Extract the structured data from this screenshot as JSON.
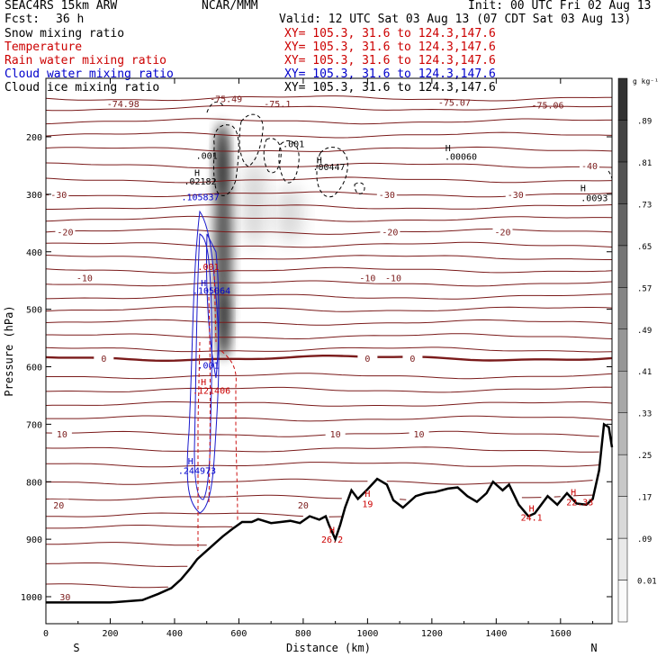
{
  "header": {
    "model": "SEAC4RS 15km ARW",
    "org": "NCAR/MMM",
    "init": "Init: 00 UTC Fri 02 Aug 13",
    "fcst_label": "Fcst:",
    "fcst_value": "36 h",
    "valid": "Valid: 12 UTC Sat 03 Aug 13 (07 CDT Sat 03 Aug 13)"
  },
  "fields": [
    {
      "name": "Snow mixing ratio",
      "xy": "XY= 105.3, 31.6 to 124.3,147.6",
      "color": "#000000"
    },
    {
      "name": "Temperature",
      "xy": "XY= 105.3, 31.6 to 124.3,147.6",
      "color": "#cc0000"
    },
    {
      "name": "Rain water mixing ratio",
      "xy": "XY= 105.3, 31.6 to 124.3,147.6",
      "color": "#cc0000"
    },
    {
      "name": "Cloud water mixing ratio",
      "xy": "XY= 105.3, 31.6 to 124.3,147.6",
      "color": "#0000cc"
    },
    {
      "name": "Cloud ice mixing ratio",
      "xy": "XY= 105.3, 31.6 to 124.3,147.6",
      "color": "#000000"
    }
  ],
  "chart_data": {
    "type": "cross-section",
    "xlabel": "Distance (km)",
    "ylabel": "Pressure (hPa)",
    "xlim": [
      0,
      1760
    ],
    "ylim": [
      1050,
      120
    ],
    "x_ticks": [
      0,
      200,
      400,
      600,
      800,
      1000,
      1200,
      1400,
      1600
    ],
    "y_ticks": [
      200,
      300,
      400,
      500,
      600,
      700,
      800,
      900,
      1000
    ],
    "left_end_label": "S",
    "right_end_label": "N",
    "colorbar": {
      "unit": "g kg⁻¹",
      "levels": [
        "0.01",
        ".09",
        ".17",
        ".25",
        ".33",
        ".41",
        ".49",
        ".57",
        ".65",
        ".73",
        ".81",
        ".89"
      ]
    },
    "temperature_isotherms": [
      {
        "temp": -30,
        "p": 300,
        "labels": [
          [
            40,
            "-30"
          ],
          [
            1060,
            "-30"
          ],
          [
            1460,
            "-30"
          ]
        ]
      },
      {
        "temp": -20,
        "p": 365,
        "labels": [
          [
            60,
            "-20"
          ],
          [
            1070,
            "-20"
          ],
          [
            1420,
            "-20"
          ]
        ]
      },
      {
        "temp": -10,
        "p": 445,
        "labels": [
          [
            120,
            "-10"
          ],
          [
            1000,
            "-10"
          ],
          [
            1080,
            "-10"
          ]
        ]
      },
      {
        "temp": 0,
        "p": 585,
        "labels": [
          [
            180,
            "0"
          ],
          [
            1000,
            "0"
          ],
          [
            1140,
            "0"
          ]
        ]
      },
      {
        "temp": 10,
        "p": 717,
        "labels": [
          [
            50,
            "10"
          ],
          [
            900,
            "10"
          ],
          [
            1160,
            "10"
          ]
        ]
      },
      {
        "temp": 20,
        "p": 840,
        "labels": [
          [
            40,
            "20"
          ],
          [
            800,
            "20"
          ]
        ]
      },
      {
        "temp": 30,
        "p": 1000,
        "labels": [
          [
            60,
            "30"
          ]
        ]
      },
      {
        "temp": -40,
        "p": 250,
        "labels": [
          [
            1690,
            "-40"
          ]
        ]
      }
    ],
    "isotherm_levels_hPa": [
      133,
      150,
      173,
      197,
      222,
      250,
      275,
      300,
      322,
      343,
      365,
      388,
      410,
      432,
      455,
      478,
      500,
      523,
      547,
      570,
      585,
      616,
      640,
      665,
      690,
      717,
      744,
      770,
      800,
      828,
      858,
      880,
      910,
      945,
      980,
      1010
    ],
    "extrema_labels": [
      {
        "x": 500,
        "p": 238,
        "text": ".001",
        "color": "#000000"
      },
      {
        "x": 470,
        "p": 268,
        "text": "H",
        "color": "#000000"
      },
      {
        "x": 480,
        "p": 283,
        "text": ".02182",
        "color": "#000000"
      },
      {
        "x": 480,
        "p": 310,
        "text": ".105837",
        "color": "#0000cc"
      },
      {
        "x": 770,
        "p": 218,
        "text": ".001",
        "color": "#000000"
      },
      {
        "x": 850,
        "p": 246,
        "text": "H",
        "color": "#000000"
      },
      {
        "x": 880,
        "p": 258,
        "text": ".00447",
        "color": "#000000"
      },
      {
        "x": 1250,
        "p": 225,
        "text": "H",
        "color": "#000000"
      },
      {
        "x": 1290,
        "p": 240,
        "text": ".00060",
        "color": "#000000"
      },
      {
        "x": 1670,
        "p": 295,
        "text": "H",
        "color": "#000000"
      },
      {
        "x": 1705,
        "p": 312,
        "text": ".0093",
        "color": "#000000"
      },
      {
        "x": 505,
        "p": 432,
        "text": ".001",
        "color": "#cc0000"
      },
      {
        "x": 490,
        "p": 460,
        "text": "H",
        "color": "#0000cc"
      },
      {
        "x": 515,
        "p": 473,
        "text": ".105064",
        "color": "#0000cc"
      },
      {
        "x": 505,
        "p": 603,
        "text": ".001",
        "color": "#0000cc"
      },
      {
        "x": 490,
        "p": 632,
        "text": "H",
        "color": "#cc0000"
      },
      {
        "x": 515,
        "p": 647,
        "text": ".121406",
        "color": "#cc0000"
      },
      {
        "x": 450,
        "p": 770,
        "text": "H",
        "color": "#0000cc"
      },
      {
        "x": 470,
        "p": 786,
        "text": ".244973",
        "color": "#0000cc"
      },
      {
        "x": 1000,
        "p": 826,
        "text": "H",
        "color": "#cc0000"
      },
      {
        "x": 1000,
        "p": 844,
        "text": "19",
        "color": "#cc0000"
      },
      {
        "x": 890,
        "p": 890,
        "text": "H",
        "color": "#cc0000"
      },
      {
        "x": 890,
        "p": 906,
        "text": "26.2",
        "color": "#cc0000"
      },
      {
        "x": 1510,
        "p": 852,
        "text": "H",
        "color": "#cc0000"
      },
      {
        "x": 1510,
        "p": 868,
        "text": "24.1",
        "color": "#cc0000"
      },
      {
        "x": 1640,
        "p": 824,
        "text": "H",
        "color": "#cc0000"
      },
      {
        "x": 1660,
        "p": 841,
        "text": "22.33",
        "color": "#cc0000"
      }
    ],
    "top_labels": [
      {
        "x": 240,
        "p": 148,
        "text": "-74.98"
      },
      {
        "x": 560,
        "p": 140,
        "text": "-75.49"
      },
      {
        "x": 720,
        "p": 148,
        "text": "-75.1"
      },
      {
        "x": 1270,
        "p": 146,
        "text": "-75.07"
      },
      {
        "x": 1560,
        "p": 151,
        "text": "-75.06"
      }
    ],
    "terrain_surface": [
      [
        0,
        1010
      ],
      [
        100,
        1010
      ],
      [
        200,
        1010
      ],
      [
        300,
        1006
      ],
      [
        350,
        995
      ],
      [
        390,
        985
      ],
      [
        420,
        970
      ],
      [
        450,
        950
      ],
      [
        470,
        935
      ],
      [
        490,
        925
      ],
      [
        510,
        915
      ],
      [
        530,
        905
      ],
      [
        550,
        895
      ],
      [
        580,
        882
      ],
      [
        610,
        870
      ],
      [
        640,
        870
      ],
      [
        660,
        865
      ],
      [
        700,
        872
      ],
      [
        730,
        870
      ],
      [
        760,
        868
      ],
      [
        790,
        872
      ],
      [
        820,
        860
      ],
      [
        850,
        866
      ],
      [
        870,
        860
      ],
      [
        880,
        875
      ],
      [
        900,
        900
      ],
      [
        915,
        875
      ],
      [
        930,
        845
      ],
      [
        950,
        815
      ],
      [
        970,
        830
      ],
      [
        1000,
        813
      ],
      [
        1030,
        795
      ],
      [
        1060,
        805
      ],
      [
        1080,
        832
      ],
      [
        1110,
        845
      ],
      [
        1150,
        825
      ],
      [
        1180,
        820
      ],
      [
        1210,
        818
      ],
      [
        1250,
        812
      ],
      [
        1280,
        810
      ],
      [
        1310,
        825
      ],
      [
        1340,
        835
      ],
      [
        1370,
        820
      ],
      [
        1390,
        800
      ],
      [
        1420,
        815
      ],
      [
        1440,
        805
      ],
      [
        1470,
        840
      ],
      [
        1500,
        860
      ],
      [
        1520,
        855
      ],
      [
        1560,
        825
      ],
      [
        1590,
        840
      ],
      [
        1620,
        820
      ],
      [
        1650,
        838
      ],
      [
        1680,
        840
      ],
      [
        1700,
        830
      ],
      [
        1720,
        780
      ],
      [
        1735,
        700
      ],
      [
        1750,
        705
      ],
      [
        1760,
        740
      ]
    ]
  }
}
